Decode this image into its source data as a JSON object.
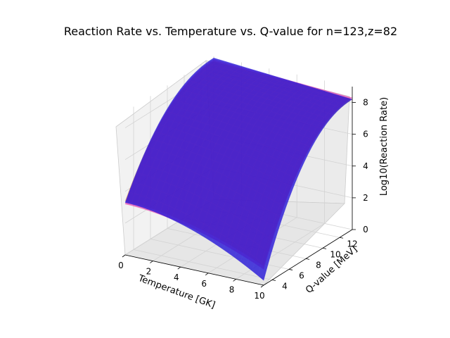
{
  "chart_data": {
    "type": "surface3d",
    "title": "Reaction Rate vs. Temperature vs. Q-value for n=123,z=82",
    "xlabel": "Temperature [GK]",
    "ylabel": "Q-value [MeV]",
    "zlabel": "Log10(Reaction Rate)",
    "xlim": [
      0,
      10
    ],
    "ylim": [
      3,
      13.5
    ],
    "zlim": [
      0,
      9
    ],
    "xticks": [
      "0",
      "2",
      "4",
      "6",
      "8",
      "10"
    ],
    "yticks": [
      "4",
      "6",
      "8",
      "10",
      "12"
    ],
    "zticks": [
      "0",
      "2",
      "4",
      "6",
      "8"
    ],
    "grid": true,
    "surfaces": [
      {
        "color": "#ff8c1a",
        "corner_z": {
          "t0_qlow": 3.4,
          "t0_qhigh": 8.7,
          "t10_qlow": 1.2,
          "t10_qhigh": 8.2
        }
      },
      {
        "color": "#e0109a",
        "corner_z": {
          "t0_qlow": 3.2,
          "t0_qhigh": 8.8,
          "t10_qlow": 1.0,
          "t10_qhigh": 8.3
        }
      },
      {
        "color": "#2a1ad8",
        "corner_z": {
          "t0_qlow": 3.3,
          "t0_qhigh": 8.9,
          "t10_qlow": 0.3,
          "t10_qhigh": 8.2
        }
      }
    ]
  }
}
